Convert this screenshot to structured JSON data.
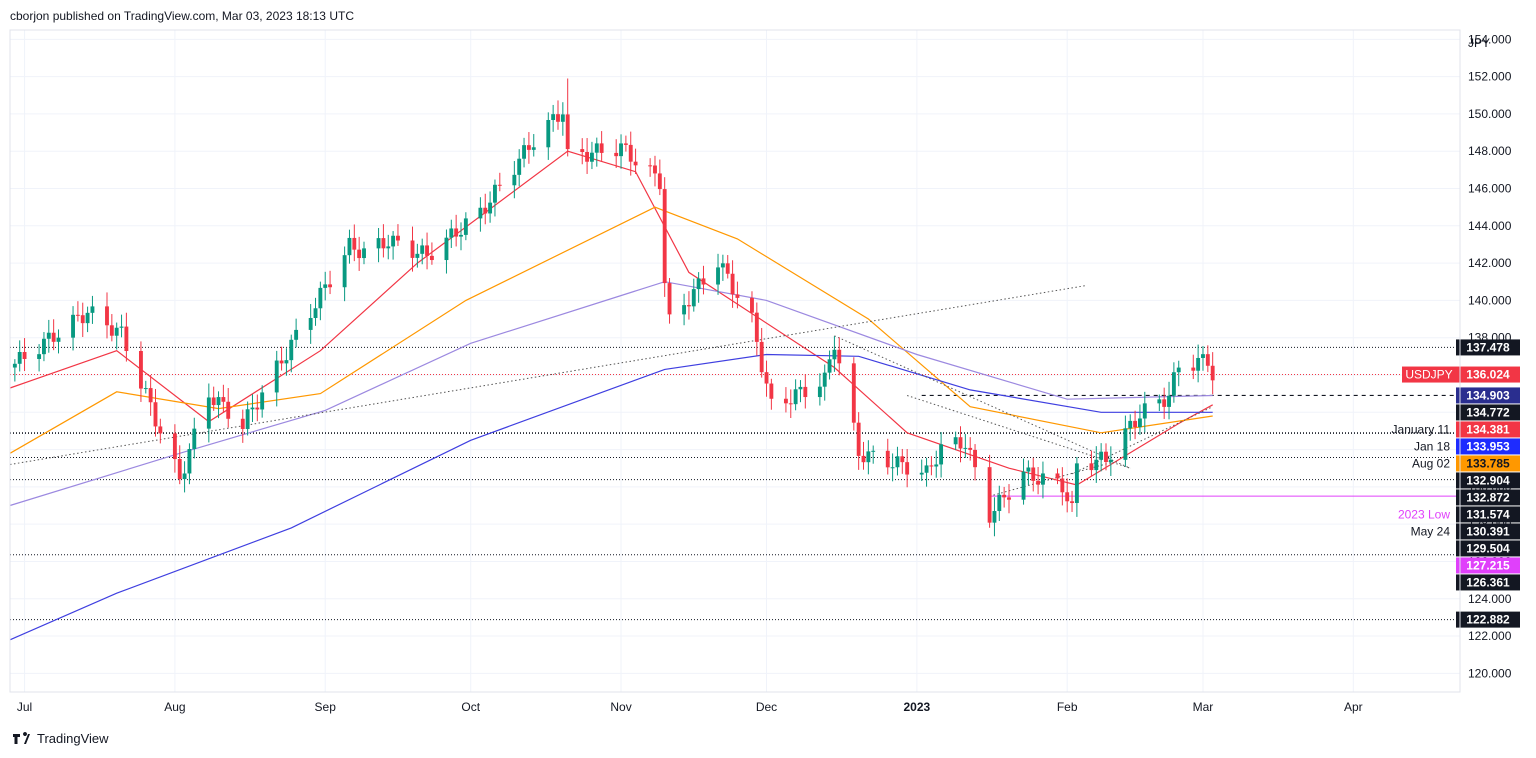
{
  "header": {
    "published_text": "cborjon published on TradingView.com, Mar 03, 2023 18:13 UTC"
  },
  "footer": {
    "brand": "TradingView"
  },
  "colors": {
    "up": "#089981",
    "down": "#f23645",
    "ema_red": "#f23645",
    "ema_orange": "#ff9800",
    "ema_purple": "#9c89e0",
    "ema_blue": "#3f3fe0",
    "pink": "#e040fb",
    "grid": "#f0f3fa"
  },
  "chart_data": {
    "type": "candlestick",
    "symbol": "USDJPY",
    "currency_label": "JPY",
    "ylim": [
      119,
      154.5
    ],
    "y_ticks": [
      "120.000",
      "122.000",
      "124.000",
      "126.000",
      "128.000",
      "130.000",
      "132.000",
      "134.000",
      "136.000",
      "138.000",
      "140.000",
      "142.000",
      "144.000",
      "146.000",
      "148.000",
      "150.000",
      "152.000",
      "154.000"
    ],
    "x_ticks": [
      {
        "label": "Jul",
        "date": "2022-07-01"
      },
      {
        "label": "Aug",
        "date": "2022-08-01"
      },
      {
        "label": "Sep",
        "date": "2022-09-01"
      },
      {
        "label": "Oct",
        "date": "2022-10-01"
      },
      {
        "label": "Nov",
        "date": "2022-11-01"
      },
      {
        "label": "Dec",
        "date": "2022-12-01"
      },
      {
        "label": "2023",
        "date": "2023-01-01",
        "bold": true
      },
      {
        "label": "Feb",
        "date": "2023-02-01"
      },
      {
        "label": "Mar",
        "date": "2023-03-01"
      },
      {
        "label": "Apr",
        "date": "2023-04-01"
      }
    ],
    "x_range": [
      "2022-06-28",
      "2023-04-23"
    ],
    "key_points": [
      {
        "date": "2022-06-29",
        "close": 136.6
      },
      {
        "date": "2022-07-14",
        "close": 139.4
      },
      {
        "date": "2022-07-21",
        "close": 138.2
      },
      {
        "date": "2022-08-02",
        "close": 130.4
      },
      {
        "date": "2022-08-08",
        "close": 135.0
      },
      {
        "date": "2022-08-15",
        "close": 133.3
      },
      {
        "date": "2022-08-24",
        "close": 137.2
      },
      {
        "date": "2022-09-06",
        "close": 142.9
      },
      {
        "date": "2022-09-09",
        "close": 142.6
      },
      {
        "date": "2022-09-14",
        "close": 143.2
      },
      {
        "date": "2022-09-22",
        "close": 142.4
      },
      {
        "date": "2022-10-03",
        "close": 144.7
      },
      {
        "date": "2022-10-14",
        "close": 148.6
      },
      {
        "date": "2022-10-20",
        "close": 150.2
      },
      {
        "date": "2022-10-21",
        "close": 147.7
      },
      {
        "date": "2022-11-01",
        "close": 148.2
      },
      {
        "date": "2022-11-09",
        "close": 146.4
      },
      {
        "date": "2022-11-10",
        "close": 141.0
      },
      {
        "date": "2022-11-11",
        "close": 138.8
      },
      {
        "date": "2022-11-21",
        "close": 142.1
      },
      {
        "date": "2022-11-28",
        "close": 138.9
      },
      {
        "date": "2022-12-02",
        "close": 134.3
      },
      {
        "date": "2022-12-13",
        "close": 135.7
      },
      {
        "date": "2022-12-15",
        "close": 137.8
      },
      {
        "date": "2022-12-20",
        "close": 131.8
      },
      {
        "date": "2022-12-30",
        "close": 131.1
      },
      {
        "date": "2023-01-03",
        "close": 130.7
      },
      {
        "date": "2023-01-06",
        "close": 132.1
      },
      {
        "date": "2023-01-11",
        "close": 132.4
      },
      {
        "date": "2023-01-16",
        "close": 128.5
      },
      {
        "date": "2023-01-23",
        "close": 130.7
      },
      {
        "date": "2023-01-31",
        "close": 130.1
      },
      {
        "date": "2023-02-02",
        "close": 128.7
      },
      {
        "date": "2023-02-03",
        "close": 131.2
      },
      {
        "date": "2023-02-09",
        "close": 131.5
      },
      {
        "date": "2023-02-16",
        "close": 133.9
      },
      {
        "date": "2023-02-22",
        "close": 134.9
      },
      {
        "date": "2023-02-24",
        "close": 136.5
      },
      {
        "date": "2023-03-02",
        "close": 136.8
      },
      {
        "date": "2023-03-03",
        "close": 136.0
      }
    ],
    "high_extreme": {
      "date": "2022-10-21",
      "value": 151.9
    },
    "ema_lines": [
      {
        "name": "EMA red",
        "color": "#f23645",
        "points": [
          [
            "2022-06-28",
            135.3
          ],
          [
            "2022-07-20",
            137.3
          ],
          [
            "2022-08-08",
            133.5
          ],
          [
            "2022-08-31",
            137.3
          ],
          [
            "2022-09-20",
            142.0
          ],
          [
            "2022-10-21",
            148.0
          ],
          [
            "2022-11-04",
            146.9
          ],
          [
            "2022-11-15",
            141.5
          ],
          [
            "2022-12-15",
            136.4
          ],
          [
            "2022-12-30",
            132.9
          ],
          [
            "2023-01-20",
            131.0
          ],
          [
            "2023-02-03",
            130.1
          ],
          [
            "2023-02-24",
            133.4
          ],
          [
            "2023-03-03",
            134.4
          ]
        ]
      },
      {
        "name": "EMA orange",
        "color": "#ff9800",
        "points": [
          [
            "2022-06-28",
            131.8
          ],
          [
            "2022-07-20",
            135.1
          ],
          [
            "2022-08-10",
            134.2
          ],
          [
            "2022-08-31",
            135.0
          ],
          [
            "2022-09-30",
            140.0
          ],
          [
            "2022-11-08",
            145.0
          ],
          [
            "2022-11-25",
            143.3
          ],
          [
            "2022-12-22",
            139.0
          ],
          [
            "2023-01-12",
            134.3
          ],
          [
            "2023-02-08",
            132.9
          ],
          [
            "2023-03-03",
            133.8
          ]
        ]
      },
      {
        "name": "EMA purple",
        "color": "#9c89e0",
        "points": [
          [
            "2022-06-28",
            129.0
          ],
          [
            "2022-08-02",
            131.8
          ],
          [
            "2022-09-01",
            134.1
          ],
          [
            "2022-10-01",
            137.7
          ],
          [
            "2022-11-10",
            141.0
          ],
          [
            "2022-12-01",
            140.0
          ],
          [
            "2023-01-01",
            137.1
          ],
          [
            "2023-02-01",
            134.7
          ],
          [
            "2023-03-03",
            134.9
          ]
        ]
      },
      {
        "name": "SMA blue",
        "color": "#3f3fe0",
        "points": [
          [
            "2022-06-28",
            121.8
          ],
          [
            "2022-07-20",
            124.3
          ],
          [
            "2022-08-25",
            127.8
          ],
          [
            "2022-10-01",
            132.5
          ],
          [
            "2022-11-10",
            136.3
          ],
          [
            "2022-12-01",
            137.1
          ],
          [
            "2022-12-20",
            137.0
          ],
          [
            "2023-01-12",
            135.2
          ],
          [
            "2023-02-08",
            134.0
          ],
          [
            "2023-03-03",
            134.0
          ]
        ]
      }
    ],
    "trendlines": [
      {
        "style": "dotted",
        "color": "#555",
        "from": [
          "2022-06-28",
          131.2
        ],
        "to": [
          "2023-02-05",
          140.8
        ]
      },
      {
        "style": "dotted",
        "color": "#555",
        "from": [
          "2022-12-15",
          138.1
        ],
        "to": [
          "2023-02-14",
          131.0
        ]
      },
      {
        "style": "dotted",
        "color": "#555",
        "from": [
          "2022-12-30",
          134.9
        ],
        "to": [
          "2023-02-14",
          131.0
        ]
      },
      {
        "style": "dotted",
        "color": "#555",
        "from": [
          "2023-01-16",
          129.5
        ],
        "to": [
          "2023-02-10",
          131.3
        ]
      },
      {
        "style": "dotted",
        "color": "#555",
        "from": [
          "2023-02-02",
          130.7
        ],
        "to": [
          "2023-03-03",
          134.3
        ]
      }
    ],
    "horizontal_levels": [
      {
        "value": 137.478,
        "style": "dotted",
        "color": "#131722"
      },
      {
        "value": 136.024,
        "style": "dotted",
        "color": "#f23645"
      },
      {
        "value": 134.903,
        "style": "dashed",
        "color": "#131722",
        "from": "2023-01-02"
      },
      {
        "value": 132.904,
        "style": "dotted",
        "color": "#131722"
      },
      {
        "value": 132.872,
        "style": "dotted",
        "color": "#131722"
      },
      {
        "value": 131.574,
        "style": "dotted",
        "color": "#131722"
      },
      {
        "value": 130.391,
        "style": "dotted",
        "color": "#131722"
      },
      {
        "value": 129.504,
        "style": "solid",
        "color": "#e040fb",
        "from": "2023-01-16"
      },
      {
        "value": 126.361,
        "style": "dotted",
        "color": "#131722"
      },
      {
        "value": 122.882,
        "style": "dotted",
        "color": "#131722"
      }
    ],
    "price_labels": [
      {
        "text": "137.478",
        "value": 137.478,
        "bg": "#131722",
        "fg": "#ffffff"
      },
      {
        "text": "136.024",
        "value": 136.024,
        "bg": "#f23645",
        "fg": "#ffffff",
        "prefix": "USDJPY"
      },
      {
        "text": "134.903",
        "value": 134.903,
        "bg": "#2a2e8f",
        "fg": "#ffffff"
      },
      {
        "text": "134.772",
        "value": 134.772,
        "bg": "#131722",
        "fg": "#ffffff"
      },
      {
        "text": "134.381",
        "value": 134.381,
        "bg": "#f23645",
        "fg": "#ffffff",
        "prefix": "January 11"
      },
      {
        "text": "133.953",
        "value": 133.953,
        "bg": "#1e2cff",
        "fg": "#ffffff",
        "prefix": "Jan 18"
      },
      {
        "text": "133.785",
        "value": 133.785,
        "bg": "#ff9800",
        "fg": "#131722",
        "prefix": "Aug 02"
      },
      {
        "text": "132.904",
        "value": 132.904,
        "bg": "#131722",
        "fg": "#ffffff"
      },
      {
        "text": "132.872",
        "value": 132.872,
        "bg": "#131722",
        "fg": "#ffffff"
      },
      {
        "text": "131.574",
        "value": 131.574,
        "bg": "#131722",
        "fg": "#ffffff",
        "prefix": "2023 Low",
        "prefix_color": "#e040fb"
      },
      {
        "text": "130.391",
        "value": 130.391,
        "bg": "#131722",
        "fg": "#ffffff",
        "prefix": "May 24"
      },
      {
        "text": "129.504",
        "value": 129.504,
        "bg": "#131722",
        "fg": "#ffffff"
      },
      {
        "text": "127.215",
        "value": 127.215,
        "bg": "#e040fb",
        "fg": "#ffffff"
      },
      {
        "text": "126.361",
        "value": 126.361,
        "bg": "#131722",
        "fg": "#ffffff"
      },
      {
        "text": "122.882",
        "value": 122.882,
        "bg": "#131722",
        "fg": "#ffffff"
      }
    ]
  }
}
